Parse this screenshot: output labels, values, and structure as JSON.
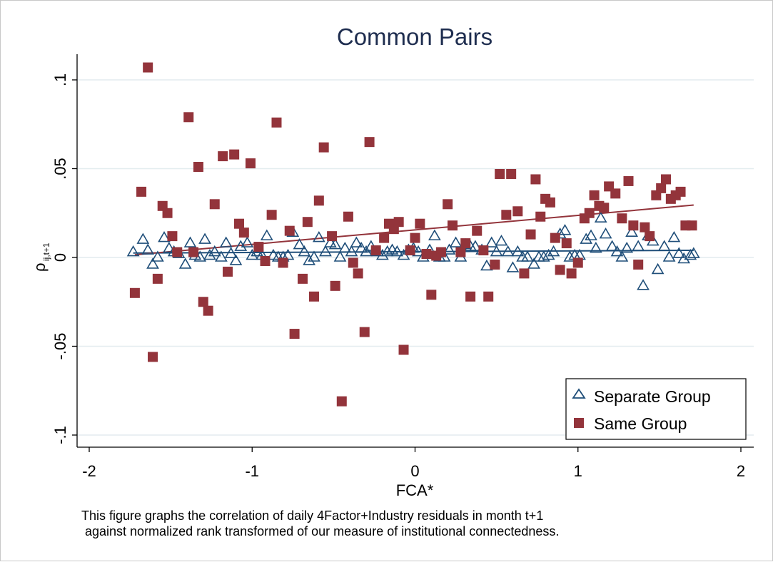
{
  "chart_data": {
    "type": "scatter",
    "title": "Common Pairs",
    "xlabel": "FCA*",
    "ylabel": "ρ",
    "ylabel_sub": "ij,t+1",
    "xlim": [
      -2.0,
      2.0
    ],
    "ylim": [
      -0.1,
      0.1
    ],
    "xticks": [
      -2,
      -1,
      0,
      1,
      2
    ],
    "xtick_labels": [
      "-2",
      "-1",
      "0",
      "1",
      "2"
    ],
    "yticks": [
      -0.1,
      -0.05,
      0,
      0.05,
      0.1
    ],
    "ytick_labels": [
      "-.1",
      "-.05",
      "0",
      ".05",
      ".1"
    ],
    "grid": "horizontal",
    "legend_position": "bottom-right",
    "series": [
      {
        "name": "Separate Group",
        "marker": "hollow-triangle",
        "color": "#1f4e79",
        "x": [
          -1.73,
          -1.67,
          -1.64,
          -1.61,
          -1.58,
          -1.54,
          -1.51,
          -1.48,
          -1.45,
          -1.41,
          -1.38,
          -1.35,
          -1.32,
          -1.29,
          -1.26,
          -1.23,
          -1.19,
          -1.16,
          -1.13,
          -1.1,
          -1.07,
          -1.03,
          -1.0,
          -0.97,
          -0.94,
          -0.91,
          -0.87,
          -0.84,
          -0.81,
          -0.78,
          -0.75,
          -0.71,
          -0.68,
          -0.65,
          -0.62,
          -0.59,
          -0.55,
          -0.52,
          -0.49,
          -0.46,
          -0.43,
          -0.39,
          -0.36,
          -0.33,
          -0.3,
          -0.27,
          -0.23,
          -0.2,
          -0.17,
          -0.14,
          -0.11,
          -0.07,
          -0.04,
          -0.01,
          0.02,
          0.05,
          0.09,
          0.12,
          0.15,
          0.18,
          0.21,
          0.25,
          0.28,
          0.31,
          0.34,
          0.37,
          0.41,
          0.44,
          0.47,
          0.5,
          0.53,
          0.57,
          0.6,
          0.63,
          0.66,
          0.69,
          0.73,
          0.76,
          0.79,
          0.82,
          0.85,
          0.89,
          0.92,
          0.95,
          0.98,
          1.01,
          1.05,
          1.08,
          1.11,
          1.14,
          1.17,
          1.21,
          1.24,
          1.27,
          1.3,
          1.33,
          1.37,
          1.4,
          1.43,
          1.46,
          1.49,
          1.53,
          1.56,
          1.59,
          1.62,
          1.65,
          1.69,
          1.71
        ],
        "y": [
          0.003,
          0.01,
          0.004,
          -0.004,
          0.0,
          0.011,
          0.005,
          0.003,
          0.002,
          -0.004,
          0.008,
          0.001,
          0.0,
          0.01,
          0.001,
          0.003,
          0.0,
          0.008,
          0.002,
          -0.002,
          0.006,
          0.008,
          0.001,
          0.003,
          0.001,
          0.012,
          0.001,
          0.0,
          0.0,
          0.001,
          0.014,
          0.007,
          0.003,
          -0.002,
          0.0,
          0.011,
          0.003,
          0.008,
          0.007,
          0.0,
          0.005,
          0.003,
          0.008,
          0.005,
          0.003,
          0.006,
          0.003,
          0.001,
          0.003,
          0.004,
          0.003,
          0.001,
          0.004,
          0.005,
          0.003,
          0.0,
          0.004,
          0.012,
          0.0,
          0.0,
          0.004,
          0.008,
          0.0,
          0.007,
          0.006,
          0.006,
          0.004,
          -0.005,
          0.008,
          0.003,
          0.009,
          0.003,
          -0.006,
          0.003,
          0.0,
          0.0,
          -0.004,
          0.0,
          0.0,
          0.001,
          0.003,
          0.013,
          0.015,
          0.0,
          0.001,
          0.001,
          0.01,
          0.012,
          0.005,
          0.022,
          0.013,
          0.006,
          0.003,
          0.0,
          0.005,
          0.014,
          0.006,
          -0.016,
          0.012,
          0.009,
          -0.007,
          0.006,
          0.0,
          0.011,
          0.002,
          -0.001,
          0.001,
          0.002
        ]
      },
      {
        "name": "Same Group",
        "marker": "filled-square",
        "color": "#93343b",
        "x": [
          -1.72,
          -1.68,
          -1.64,
          -1.61,
          -1.58,
          -1.55,
          -1.52,
          -1.49,
          -1.46,
          -1.39,
          -1.36,
          -1.33,
          -1.3,
          -1.27,
          -1.23,
          -1.18,
          -1.15,
          -1.11,
          -1.08,
          -1.05,
          -1.01,
          -0.96,
          -0.92,
          -0.88,
          -0.85,
          -0.81,
          -0.77,
          -0.74,
          -0.69,
          -0.66,
          -0.62,
          -0.59,
          -0.56,
          -0.51,
          -0.49,
          -0.45,
          -0.41,
          -0.38,
          -0.35,
          -0.31,
          -0.28,
          -0.24,
          -0.19,
          -0.16,
          -0.13,
          -0.1,
          -0.07,
          -0.03,
          0.0,
          0.03,
          0.07,
          0.1,
          0.13,
          0.16,
          0.2,
          0.23,
          0.28,
          0.31,
          0.34,
          0.38,
          0.42,
          0.45,
          0.49,
          0.52,
          0.56,
          0.59,
          0.63,
          0.67,
          0.71,
          0.74,
          0.77,
          0.8,
          0.83,
          0.86,
          0.89,
          0.93,
          0.96,
          1.0,
          1.04,
          1.07,
          1.1,
          1.13,
          1.16,
          1.19,
          1.23,
          1.27,
          1.31,
          1.34,
          1.37,
          1.41,
          1.44,
          1.48,
          1.51,
          1.54,
          1.57,
          1.6,
          1.63,
          1.66,
          1.7
        ],
        "y": [
          -0.02,
          0.037,
          0.107,
          -0.056,
          -0.012,
          0.029,
          0.025,
          0.012,
          0.003,
          0.079,
          0.003,
          0.051,
          -0.025,
          -0.03,
          0.03,
          0.057,
          -0.008,
          0.058,
          0.019,
          0.014,
          0.053,
          0.006,
          -0.002,
          0.024,
          0.076,
          -0.003,
          0.015,
          -0.043,
          -0.012,
          0.02,
          -0.022,
          0.032,
          0.062,
          0.012,
          -0.016,
          -0.081,
          0.023,
          -0.003,
          -0.009,
          -0.042,
          0.065,
          0.004,
          0.011,
          0.019,
          0.016,
          0.02,
          -0.052,
          0.004,
          0.011,
          0.019,
          0.002,
          -0.021,
          0.001,
          0.003,
          0.03,
          0.018,
          0.003,
          0.008,
          -0.022,
          0.015,
          0.004,
          -0.022,
          -0.004,
          0.047,
          0.024,
          0.047,
          0.026,
          -0.009,
          0.013,
          0.044,
          0.023,
          0.033,
          0.031,
          0.011,
          -0.007,
          0.008,
          -0.009,
          -0.003,
          0.022,
          0.025,
          0.035,
          0.029,
          0.028,
          0.04,
          0.036,
          0.022,
          0.043,
          0.018,
          -0.004,
          0.017,
          0.012,
          0.035,
          0.039,
          0.044,
          0.033,
          0.035,
          0.037,
          0.018,
          0.018
        ]
      }
    ],
    "fit_lines": [
      {
        "series": "Separate Group",
        "color": "#1f4e79",
        "x": [
          -1.73,
          1.71
        ],
        "y": [
          0.0025,
          0.004
        ]
      },
      {
        "series": "Same Group",
        "color": "#93343b",
        "x": [
          -1.72,
          1.71
        ],
        "y": [
          0.0015,
          0.0295
        ]
      }
    ]
  },
  "notes": {
    "line1": "This figure graphs the correlation of daily 4Factor+Industry residuals in month t+1",
    "line2": " against normalized rank transformed of our measure of institutional connectedness."
  }
}
